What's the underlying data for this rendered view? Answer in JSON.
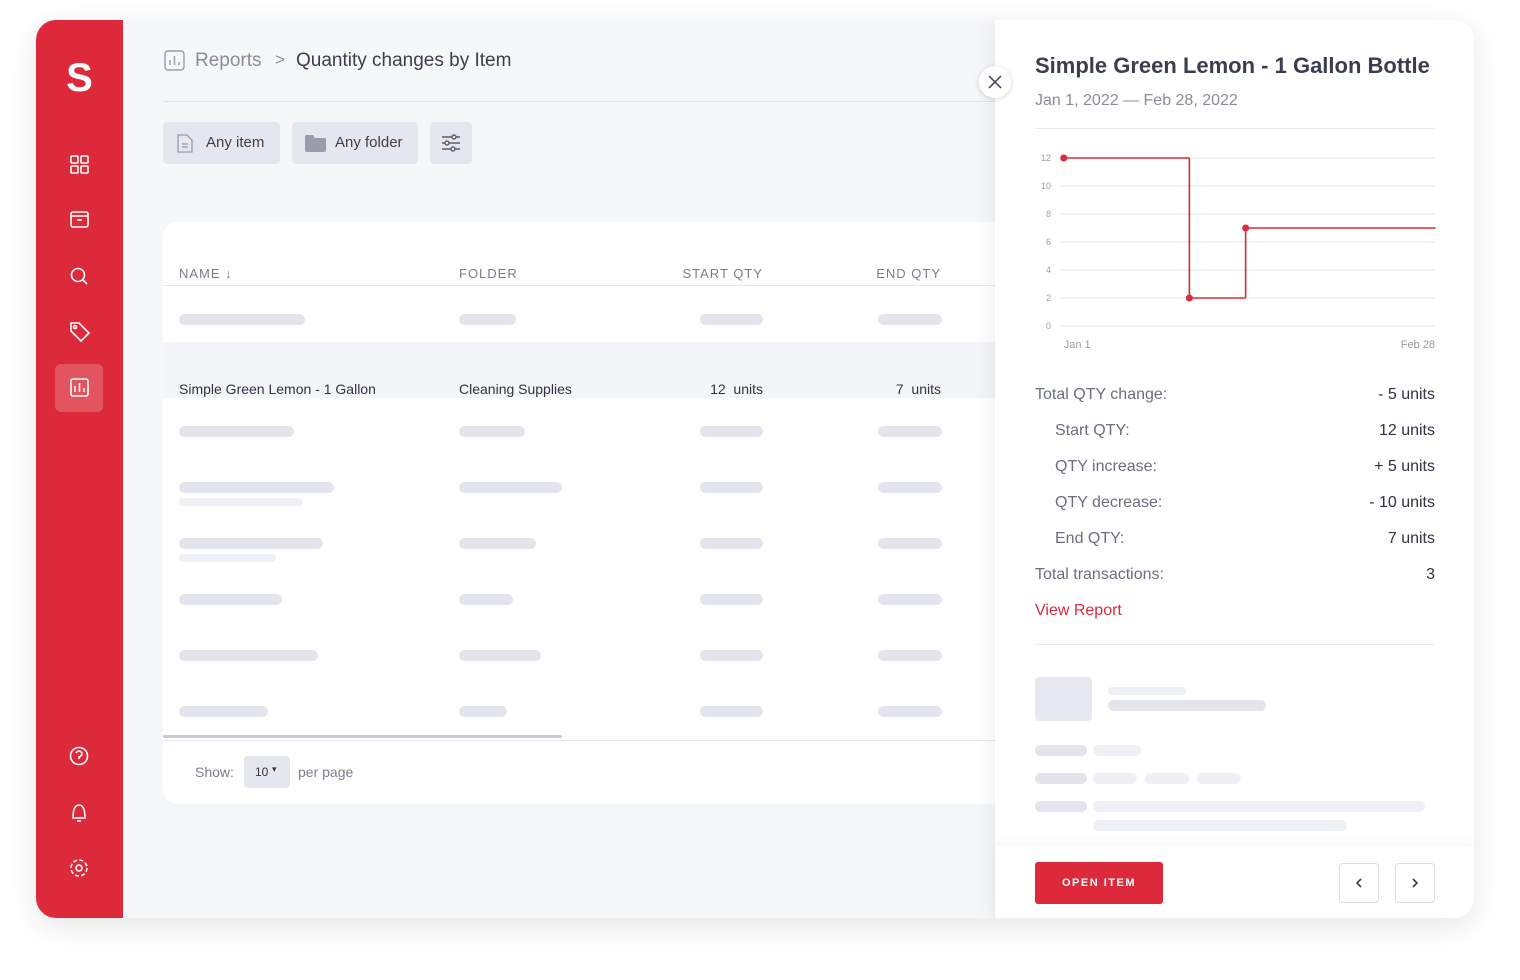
{
  "sidebar": {
    "logo": "S"
  },
  "breadcrumb": {
    "parent": "Reports",
    "separator": ">",
    "current": "Quantity changes by Item"
  },
  "filters": [
    "Any item",
    "Any folder"
  ],
  "table": {
    "headers": [
      "NAME",
      "FOLDER",
      "START QTY",
      "END QTY"
    ],
    "row": [
      "Simple Green Lemon - 1 Gallon",
      "Cleaning Supplies",
      "12  units",
      "7  units"
    ]
  },
  "pagination": {
    "show": "Show:",
    "size": "10",
    "suffix": "per page"
  },
  "panel": {
    "title": "Simple Green Lemon - 1 Gallon Bottle",
    "dates": "Jan 1, 2022 — Feb 28, 2022",
    "stats": [
      {
        "label": "Total QTY change:",
        "value": "- 5 units"
      },
      {
        "label": "Start QTY:",
        "value": "12 units"
      },
      {
        "label": "QTY increase:",
        "value": "+ 5 units"
      },
      {
        "label": "QTY decrease:",
        "value": "- 10 units"
      },
      {
        "label": "End QTY:",
        "value": "7 units"
      },
      {
        "label": "Total transactions:",
        "value": "3"
      }
    ],
    "link": "View Report",
    "button": "OPEN ITEM"
  },
  "chart_data": {
    "type": "step",
    "categories": [
      "Jan 1",
      null,
      null,
      "Feb 28"
    ],
    "values": [
      12,
      2,
      7,
      7
    ],
    "color": "#dc2a3a",
    "ylim": [
      0,
      12
    ],
    "yticks": [
      0,
      2,
      4,
      6,
      8,
      10,
      12
    ],
    "grid": true
  }
}
